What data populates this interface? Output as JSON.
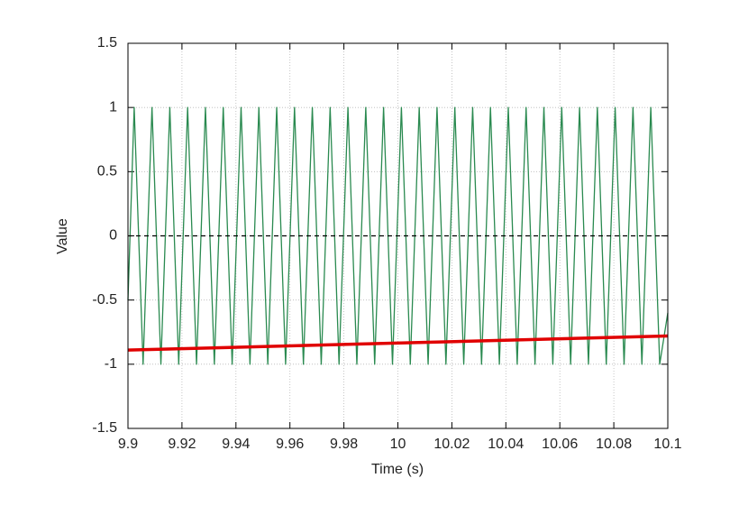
{
  "chart_data": {
    "type": "line",
    "x_label": "Time (s)",
    "y_label": "Value",
    "xlim": [
      9.9,
      10.1
    ],
    "ylim": [
      -1.5,
      1.5
    ],
    "xticks": [
      9.9,
      9.92,
      9.94,
      9.96,
      9.98,
      10,
      10.02,
      10.04,
      10.06,
      10.08,
      10.1
    ],
    "yticks": [
      -1.5,
      -1,
      -0.5,
      0,
      0.5,
      1,
      1.5
    ],
    "grid": true,
    "series": [
      {
        "color": "#2a8a50",
        "width": 1.3,
        "dash": false,
        "x": [
          9.9,
          9.9023,
          9.9056,
          9.9089,
          9.9122,
          9.9155,
          9.9188,
          9.9221,
          9.9254,
          9.9287,
          9.932,
          9.9353,
          9.9386,
          9.9419,
          9.9452,
          9.9485,
          9.9518,
          9.9551,
          9.9584,
          9.9617,
          9.965,
          9.9683,
          9.9716,
          9.9749,
          9.9782,
          9.9815,
          9.9848,
          9.9881,
          9.9914,
          9.9947,
          9.998,
          10.0013,
          10.0046,
          10.0079,
          10.0112,
          10.0145,
          10.0178,
          10.0211,
          10.0244,
          10.0277,
          10.031,
          10.0343,
          10.0376,
          10.0409,
          10.0442,
          10.0475,
          10.0508,
          10.0541,
          10.0574,
          10.0607,
          10.064,
          10.0673,
          10.0706,
          10.0739,
          10.0772,
          10.0805,
          10.0838,
          10.0871,
          10.0904,
          10.0937,
          10.097,
          10.1
        ],
        "values": [
          -0.5,
          1,
          -1,
          1,
          -1,
          1,
          -1,
          1,
          -1,
          1,
          -1,
          1,
          -1,
          1,
          -1,
          1,
          -1,
          1,
          -1,
          1,
          -1,
          1,
          -1,
          1,
          -1,
          1,
          -1,
          1,
          -1,
          1,
          -1,
          1,
          -1,
          1,
          -1,
          1,
          -1,
          1,
          -1,
          1,
          -1,
          1,
          -1,
          1,
          -1,
          1,
          -1,
          1,
          -1,
          1,
          -1,
          1,
          -1,
          1,
          -1,
          1,
          -1,
          1,
          -1,
          1,
          -1,
          -0.6
        ]
      },
      {
        "color": "#000000",
        "width": 1.2,
        "dash": true,
        "x": [
          9.9,
          10.1
        ],
        "values": [
          0,
          0
        ]
      },
      {
        "color": "#e00000",
        "width": 3.5,
        "dash": false,
        "x": [
          9.9,
          10.1
        ],
        "values": [
          -0.89,
          -0.78
        ]
      }
    ]
  }
}
